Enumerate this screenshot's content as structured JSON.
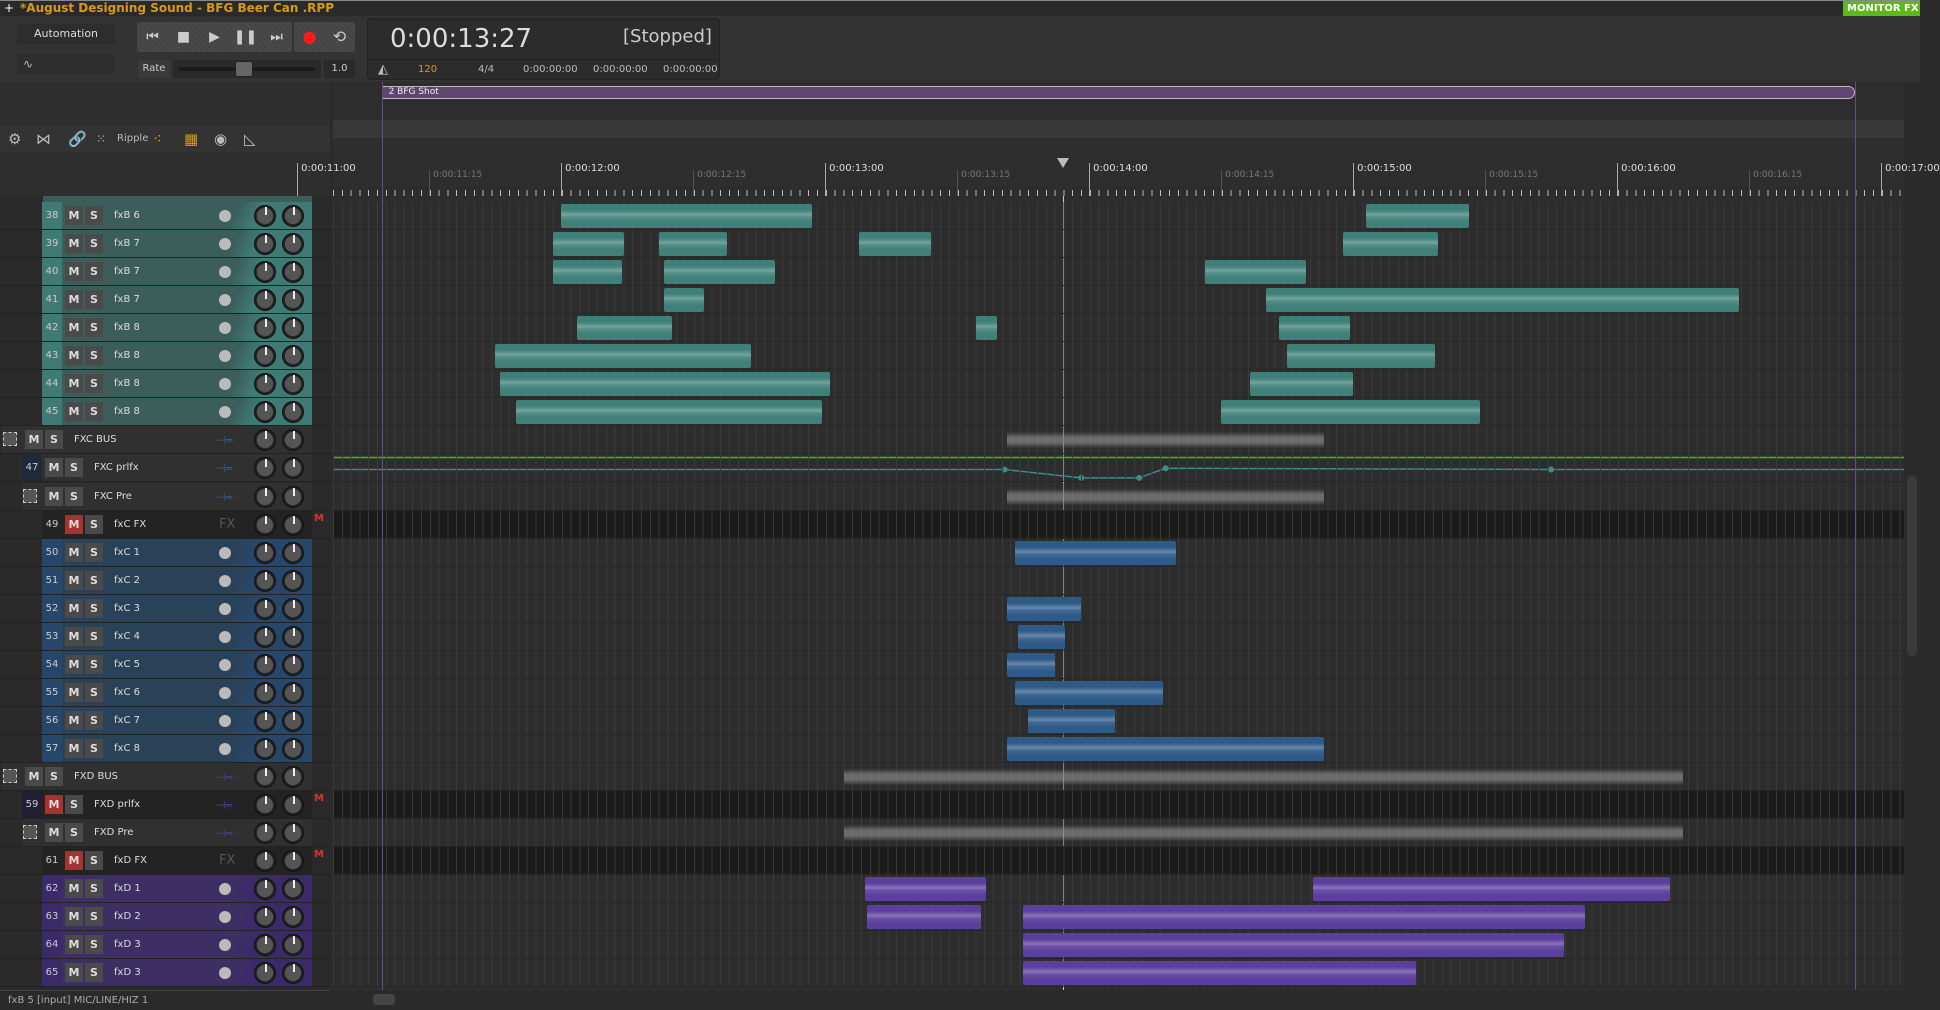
{
  "window": {
    "title": "*August Designing Sound - BFG Beer Can .RPP",
    "monitor_fx": "MONITOR FX ⏻"
  },
  "controls": {
    "automation_label": "Automation",
    "rate_label": "Rate",
    "rate_value": "1.0",
    "envelope_icon": "envelope-curve-icon"
  },
  "transport": {
    "time": "0:00:13:27",
    "status": "[Stopped]",
    "bpm": "120",
    "time_sig": "4/4",
    "sel_start": "0:00:00:00",
    "sel_end": "0:00:00:00",
    "sel_length": "0:00:00:00",
    "record_color": "#ff1a1a"
  },
  "toolbar": {
    "ripple_label": "Ripple"
  },
  "region": {
    "label": "2   BFG Shot",
    "start": 11.32,
    "end": 16.9,
    "color": "#5e4670"
  },
  "timeline": {
    "view_start": 11.136,
    "playhead": 13.9,
    "major": [
      {
        "t": 11,
        "label": "0:00:11:00"
      },
      {
        "t": 12,
        "label": "0:00:12:00"
      },
      {
        "t": 13,
        "label": "0:00:13:00"
      },
      {
        "t": 14,
        "label": "0:00:14:00"
      },
      {
        "t": 15,
        "label": "0:00:15:00"
      },
      {
        "t": 16,
        "label": "0:00:16:00"
      },
      {
        "t": 17,
        "label": "0:00:17:00"
      }
    ],
    "minor": [
      {
        "t": 11.5,
        "label": "0:00:11:15"
      },
      {
        "t": 12.5,
        "label": "0:00:12:15"
      },
      {
        "t": 13.5,
        "label": "0:00:13:15"
      },
      {
        "t": 14.5,
        "label": "0:00:14:15"
      },
      {
        "t": 15.5,
        "label": "0:00:15:15"
      },
      {
        "t": 16.5,
        "label": "0:00:16:15"
      }
    ]
  },
  "colors": {
    "fxB": "#3b5e5b",
    "fxB_num": "#3f7a74",
    "fxB_item": "#3f8078",
    "fxC": "#2a4258",
    "fxC_num": "#27476a",
    "fxC_item": "#2e5a88",
    "fxD": "#3d2f63",
    "fxD_num": "#3a2a6a",
    "fxD_item": "#5b3f9c"
  },
  "tracks": [
    {
      "num": "38",
      "name": "fxB 6",
      "depth": 2,
      "group": "fxB",
      "items": [
        [
          12.0,
          12.95
        ],
        [
          15.05,
          15.44
        ]
      ]
    },
    {
      "num": "39",
      "name": "fxB 7",
      "depth": 2,
      "group": "fxB",
      "items": [
        [
          11.97,
          12.24
        ],
        [
          12.37,
          12.63
        ],
        [
          13.13,
          13.4
        ],
        [
          14.96,
          15.32
        ]
      ]
    },
    {
      "num": "40",
      "name": "fxB 7",
      "depth": 2,
      "group": "fxB",
      "items": [
        [
          11.97,
          12.23
        ],
        [
          12.39,
          12.81
        ],
        [
          14.44,
          14.82
        ]
      ]
    },
    {
      "num": "41",
      "name": "fxB 7",
      "depth": 2,
      "group": "fxB",
      "items": [
        [
          12.39,
          12.54
        ],
        [
          14.67,
          16.46
        ]
      ]
    },
    {
      "num": "42",
      "name": "fxB 8",
      "depth": 2,
      "group": "fxB",
      "items": [
        [
          12.06,
          12.42
        ],
        [
          13.57,
          13.65
        ],
        [
          14.72,
          14.99
        ]
      ]
    },
    {
      "num": "43",
      "name": "fxB 8",
      "depth": 2,
      "group": "fxB",
      "items": [
        [
          11.75,
          12.72
        ],
        [
          14.75,
          15.31
        ]
      ]
    },
    {
      "num": "44",
      "name": "fxB 8",
      "depth": 2,
      "group": "fxB",
      "items": [
        [
          11.77,
          13.02
        ],
        [
          14.61,
          15.0
        ]
      ]
    },
    {
      "num": "45",
      "name": "fxB 8",
      "depth": 2,
      "group": "fxB",
      "items": [
        [
          11.83,
          12.99
        ],
        [
          14.5,
          15.48
        ]
      ]
    },
    {
      "num": "",
      "name": "FXC BUS",
      "depth": 0,
      "folder": true,
      "route": "FXC",
      "items_gray": [
        [
          13.69,
          14.89
        ]
      ]
    },
    {
      "num": "47",
      "name": "FXC prlfx",
      "depth": 1,
      "route": "FXC",
      "envelope": [
        [
          11.136,
          0.5
        ],
        [
          13.68,
          0.5
        ],
        [
          13.97,
          0.15
        ],
        [
          14.19,
          0.15
        ],
        [
          14.29,
          0.55
        ],
        [
          15.75,
          0.5
        ],
        [
          17.1,
          0.5
        ]
      ]
    },
    {
      "num": "",
      "name": "FXC Pre",
      "depth": 1,
      "folder": true,
      "route": "FXC",
      "items_gray": [
        [
          13.69,
          14.89
        ]
      ]
    },
    {
      "num": "49",
      "name": "fxC FX",
      "depth": 2,
      "muted": true,
      "fx": "FX"
    },
    {
      "num": "50",
      "name": "fxC 1",
      "depth": 2,
      "group": "fxC",
      "items": [
        [
          13.72,
          14.33
        ]
      ]
    },
    {
      "num": "51",
      "name": "fxC 2",
      "depth": 2,
      "group": "fxC",
      "items": []
    },
    {
      "num": "52",
      "name": "fxC 3",
      "depth": 2,
      "group": "fxC",
      "items": [
        [
          13.69,
          13.97
        ]
      ]
    },
    {
      "num": "53",
      "name": "fxC 4",
      "depth": 2,
      "group": "fxC",
      "items": [
        [
          13.73,
          13.91
        ]
      ]
    },
    {
      "num": "54",
      "name": "fxC 5",
      "depth": 2,
      "group": "fxC",
      "items": [
        [
          13.69,
          13.87
        ]
      ]
    },
    {
      "num": "55",
      "name": "fxC 6",
      "depth": 2,
      "group": "fxC",
      "items": [
        [
          13.72,
          14.28
        ]
      ]
    },
    {
      "num": "56",
      "name": "fxC 7",
      "depth": 2,
      "group": "fxC",
      "items": [
        [
          13.77,
          14.1
        ]
      ]
    },
    {
      "num": "57",
      "name": "fxC 8",
      "depth": 2,
      "group": "fxC",
      "items": [
        [
          13.69,
          14.89
        ]
      ]
    },
    {
      "num": "",
      "name": "FXD BUS",
      "depth": 0,
      "folder": true,
      "route": "FXD",
      "items_gray": [
        [
          13.07,
          16.25
        ]
      ]
    },
    {
      "num": "59",
      "name": "FXD prlfx",
      "depth": 1,
      "muted": true,
      "route": "FXD"
    },
    {
      "num": "",
      "name": "FXD Pre",
      "depth": 1,
      "folder": true,
      "route": "FXD",
      "items_gray": [
        [
          13.07,
          16.25
        ]
      ]
    },
    {
      "num": "61",
      "name": "fxD FX",
      "depth": 2,
      "muted": true,
      "fx": "FX"
    },
    {
      "num": "62",
      "name": "fxD 1",
      "depth": 2,
      "group": "fxD",
      "items": [
        [
          13.15,
          13.61
        ],
        [
          14.85,
          16.2
        ]
      ]
    },
    {
      "num": "63",
      "name": "fxD 2",
      "depth": 2,
      "group": "fxD",
      "items": [
        [
          13.16,
          13.59
        ],
        [
          13.75,
          15.88
        ]
      ]
    },
    {
      "num": "64",
      "name": "fxD 3",
      "depth": 2,
      "group": "fxD",
      "items": [
        [
          13.75,
          15.8
        ]
      ]
    },
    {
      "num": "65",
      "name": "fxD 3",
      "depth": 2,
      "group": "fxD",
      "items": [
        [
          13.75,
          15.24
        ]
      ]
    }
  ],
  "statusbar": {
    "text": "fxB 5 [input] MIC/LINE/HIZ 1"
  }
}
